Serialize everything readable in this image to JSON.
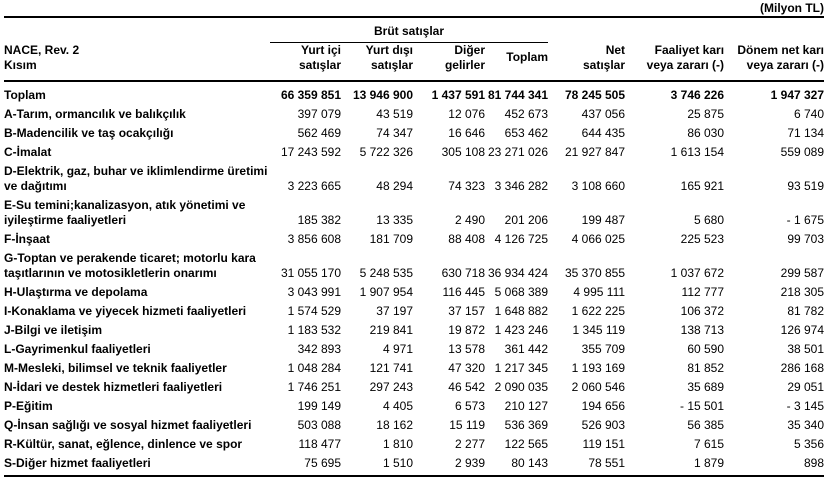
{
  "unit_note": "(Milyon TL)",
  "colors": {
    "text": "#000000",
    "background": "#ffffff",
    "rule": "#000000"
  },
  "table": {
    "header_left": "NACE, Rev. 2\nKısım",
    "group_header": "Brüt satışlar",
    "sub_headers": [
      "Yurt içi\nsatışlar",
      "Yurt dışı\nsatışlar",
      "Diğer\ngelirler",
      "Toplam"
    ],
    "value_headers": [
      "Net\nsatışlar",
      "Faaliyet karı\nveya zararı (-)",
      "Dönem net karı\nveya zararı (-)"
    ],
    "rows": [
      {
        "label": "Toplam",
        "bold": true,
        "values": [
          "66 359 851",
          "13 946 900",
          "1 437 591",
          "81 744 341",
          "78 245 505",
          "3 746 226",
          "1 947 327"
        ]
      },
      {
        "label": "A-Tarım, ormancılık ve balıkçılık",
        "bold": false,
        "values": [
          "397 079",
          "43 519",
          "12 076",
          "452 673",
          "437 056",
          "25 875",
          "6 740"
        ]
      },
      {
        "label": "B-Madencilik ve taş ocakçılığı",
        "bold": false,
        "values": [
          "562 469",
          "74 347",
          "16 646",
          "653 462",
          "644 435",
          "86 030",
          "71 134"
        ]
      },
      {
        "label": "C-İmalat",
        "bold": false,
        "values": [
          "17 243 592",
          "5 722 326",
          "305 108",
          "23 271 026",
          "21 927 847",
          "1 613 154",
          "559 089"
        ]
      },
      {
        "label": "D-Elektrik, gaz, buhar ve iklimlendirme üretimi ve dağıtımı",
        "bold": false,
        "values": [
          "3 223 665",
          "48 294",
          "74 323",
          "3 346 282",
          "3 108 660",
          "165 921",
          "93 519"
        ]
      },
      {
        "label": "E-Su temini;kanalizasyon, atık yönetimi ve iyileştirme faaliyetleri",
        "bold": false,
        "values": [
          "185 382",
          "13 335",
          "2 490",
          "201 206",
          "199 487",
          "5 680",
          "- 1 675"
        ]
      },
      {
        "label": "F-İnşaat",
        "bold": false,
        "values": [
          "3 856 608",
          "181 709",
          "88 408",
          "4 126 725",
          "4 066 025",
          "225 523",
          "99 703"
        ]
      },
      {
        "label": "G-Toptan ve perakende ticaret; motorlu kara taşıtlarının ve motosikletlerin onarımı",
        "bold": false,
        "values": [
          "31 055 170",
          "5 248 535",
          "630 718",
          "36 934 424",
          "35 370 855",
          "1 037 672",
          "299 587"
        ]
      },
      {
        "label": "H-Ulaştırma ve depolama",
        "bold": false,
        "values": [
          "3 043 991",
          "1 907 954",
          "116 445",
          "5 068 389",
          "4 995 111",
          "112 777",
          "218 305"
        ]
      },
      {
        "label": "I-Konaklama ve yiyecek hizmeti faaliyetleri",
        "bold": false,
        "values": [
          "1 574 529",
          "37 197",
          "37 157",
          "1 648 882",
          "1 622 225",
          "106 372",
          "81 782"
        ]
      },
      {
        "label": "J-Bilgi ve iletişim",
        "bold": false,
        "values": [
          "1 183 532",
          "219 841",
          "19 872",
          "1 423 246",
          "1 345 119",
          "138 713",
          "126 974"
        ]
      },
      {
        "label": "L-Gayrimenkul faaliyetleri",
        "bold": false,
        "values": [
          "342 893",
          "4 971",
          "13 578",
          "361 442",
          "355 709",
          "60 590",
          "38 501"
        ]
      },
      {
        "label": "M-Mesleki, bilimsel ve teknik faaliyetler",
        "bold": false,
        "values": [
          "1 048 284",
          "121 741",
          "47 320",
          "1 217 345",
          "1 193 169",
          "81 852",
          "286 168"
        ]
      },
      {
        "label": "N-İdari ve destek hizmetleri faaliyetleri",
        "bold": false,
        "values": [
          "1 746 251",
          "297 243",
          "46 542",
          "2 090 035",
          "2 060 546",
          "35 689",
          "29 051"
        ]
      },
      {
        "label": "P-Eğitim",
        "bold": false,
        "values": [
          "199 149",
          "4 405",
          "6 573",
          "210 127",
          "194 656",
          "- 15 501",
          "- 3 145"
        ]
      },
      {
        "label": "Q-İnsan sağlığı ve sosyal hizmet faaliyetleri",
        "bold": false,
        "values": [
          "503 088",
          "18 162",
          "15 119",
          "536 369",
          "526 903",
          "56 385",
          "35 340"
        ]
      },
      {
        "label": "R-Kültür, sanat, eğlence, dinlence ve spor",
        "bold": false,
        "values": [
          "118 477",
          "1 810",
          "2 277",
          "122 565",
          "119 151",
          "7 615",
          "5 356"
        ]
      },
      {
        "label": "S-Diğer hizmet faaliyetleri",
        "bold": false,
        "values": [
          "75 695",
          "1 510",
          "2 939",
          "80 143",
          "78 551",
          "1 879",
          "898"
        ]
      }
    ]
  },
  "chart_data": {
    "type": "table",
    "title": "",
    "unit": "(Milyon TL)",
    "column_group": {
      "label": "Brüt satışlar",
      "columns": [
        "Yurt içi satışlar",
        "Yurt dışı satışlar",
        "Diğer gelirler",
        "Toplam"
      ]
    },
    "columns": [
      "NACE, Rev. 2 Kısım",
      "Yurt içi satışlar",
      "Yurt dışı satışlar",
      "Diğer gelirler",
      "Toplam",
      "Net satışlar",
      "Faaliyet karı veya zararı (-)",
      "Dönem net karı veya zararı (-)"
    ],
    "rows": [
      [
        "Toplam",
        66359851,
        13946900,
        1437591,
        81744341,
        78245505,
        3746226,
        1947327
      ],
      [
        "A-Tarım, ormancılık ve balıkçılık",
        397079,
        43519,
        12076,
        452673,
        437056,
        25875,
        6740
      ],
      [
        "B-Madencilik ve taş ocakçılığı",
        562469,
        74347,
        16646,
        653462,
        644435,
        86030,
        71134
      ],
      [
        "C-İmalat",
        17243592,
        5722326,
        305108,
        23271026,
        21927847,
        1613154,
        559089
      ],
      [
        "D-Elektrik, gaz, buhar ve iklimlendirme üretimi ve dağıtımı",
        3223665,
        48294,
        74323,
        3346282,
        3108660,
        165921,
        93519
      ],
      [
        "E-Su temini;kanalizasyon, atık yönetimi ve iyileştirme faaliyetleri",
        185382,
        13335,
        2490,
        201206,
        199487,
        5680,
        -1675
      ],
      [
        "F-İnşaat",
        3856608,
        181709,
        88408,
        4126725,
        4066025,
        225523,
        99703
      ],
      [
        "G-Toptan ve perakende ticaret; motorlu kara taşıtlarının ve motosikletlerin onarımı",
        31055170,
        5248535,
        630718,
        36934424,
        35370855,
        1037672,
        299587
      ],
      [
        "H-Ulaştırma ve depolama",
        3043991,
        1907954,
        116445,
        5068389,
        4995111,
        112777,
        218305
      ],
      [
        "I-Konaklama ve yiyecek hizmeti faaliyetleri",
        1574529,
        37197,
        37157,
        1648882,
        1622225,
        106372,
        81782
      ],
      [
        "J-Bilgi ve iletişim",
        1183532,
        219841,
        19872,
        1423246,
        1345119,
        138713,
        126974
      ],
      [
        "L-Gayrimenkul faaliyetleri",
        342893,
        4971,
        13578,
        361442,
        355709,
        60590,
        38501
      ],
      [
        "M-Mesleki, bilimsel ve teknik faaliyetler",
        1048284,
        121741,
        47320,
        1217345,
        1193169,
        81852,
        286168
      ],
      [
        "N-İdari ve destek hizmetleri faaliyetleri",
        1746251,
        297243,
        46542,
        2090035,
        2060546,
        35689,
        29051
      ],
      [
        "P-Eğitim",
        199149,
        4405,
        6573,
        210127,
        194656,
        -15501,
        -3145
      ],
      [
        "Q-İnsan sağlığı ve sosyal hizmet faaliyetleri",
        503088,
        18162,
        15119,
        536369,
        526903,
        56385,
        35340
      ],
      [
        "R-Kültür, sanat, eğlence, dinlence ve spor",
        118477,
        1810,
        2277,
        122565,
        119151,
        7615,
        5356
      ],
      [
        "S-Diğer hizmet faaliyetleri",
        75695,
        1510,
        2939,
        80143,
        78551,
        1879,
        898
      ]
    ]
  }
}
